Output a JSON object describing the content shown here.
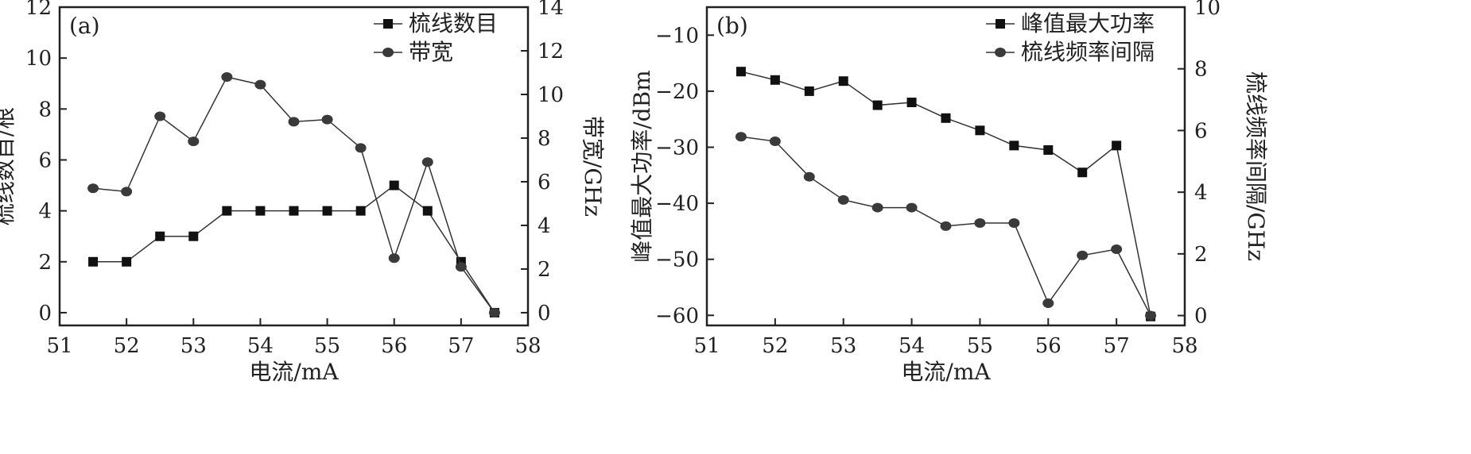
{
  "chart_data": [
    {
      "type": "line",
      "panel_label": "(a)",
      "xlabel": "电流/mA",
      "ylabel_left": "梳线数目/根",
      "ylabel_right": "带宽/GHz",
      "xlim": [
        51,
        58
      ],
      "ylim_left": [
        -0.5,
        12
      ],
      "ylim_right": [
        -0.5833,
        14
      ],
      "x_ticks": [
        51,
        52,
        53,
        54,
        55,
        56,
        57,
        58
      ],
      "y_ticks_left": [
        0,
        2,
        4,
        6,
        8,
        10,
        12
      ],
      "y_ticks_right": [
        0,
        2,
        4,
        6,
        8,
        10,
        12,
        14
      ],
      "legend_position": "top-right",
      "series": [
        {
          "name": "梳线数目",
          "axis": "left",
          "marker": "square",
          "x": [
            51.5,
            52,
            52.5,
            53,
            53.5,
            54,
            54.5,
            55,
            55.5,
            56,
            56.5,
            57,
            57.5
          ],
          "values": [
            2,
            2,
            3,
            3,
            4,
            4,
            4,
            4,
            4,
            5,
            4,
            2,
            0
          ]
        },
        {
          "name": "带宽",
          "axis": "right",
          "marker": "circle",
          "x": [
            51.5,
            52,
            52.5,
            53,
            53.5,
            54,
            54.5,
            55,
            55.5,
            56,
            56.5,
            57,
            57.5
          ],
          "values": [
            5.7,
            5.55,
            9.0,
            7.85,
            10.8,
            10.45,
            8.75,
            8.85,
            7.55,
            2.5,
            6.9,
            2.1,
            0
          ]
        }
      ]
    },
    {
      "type": "line",
      "panel_label": "(b)",
      "xlabel": "电流/mA",
      "ylabel_left": "峰值最大功率/dBm",
      "ylabel_right": "梳线频率间隔/GHz",
      "xlim": [
        51,
        58
      ],
      "ylim_left": [
        -61.8,
        -5
      ],
      "ylim_right": [
        -0.32,
        10
      ],
      "x_ticks": [
        51,
        52,
        53,
        54,
        55,
        56,
        57,
        58
      ],
      "y_ticks_left": [
        -60,
        -50,
        -40,
        -30,
        -20,
        -10
      ],
      "y_ticks_right": [
        0,
        2,
        4,
        6,
        8,
        10
      ],
      "legend_position": "top-right",
      "series": [
        {
          "name": "峰值最大功率",
          "axis": "left",
          "marker": "square",
          "x": [
            51.5,
            52,
            52.5,
            53,
            53.5,
            54,
            54.5,
            55,
            55.5,
            56,
            56.5,
            57,
            57.5
          ],
          "values": [
            -16.5,
            -18,
            -20,
            -18.2,
            -22.5,
            -22,
            -24.8,
            -27,
            -29.7,
            -30.5,
            -34.5,
            -29.7,
            -60.2
          ]
        },
        {
          "name": "梳线频率间隔",
          "axis": "right",
          "marker": "circle",
          "x": [
            51.5,
            52,
            52.5,
            53,
            53.5,
            54,
            54.5,
            55,
            55.5,
            56,
            56.5,
            57,
            57.5
          ],
          "values": [
            5.8,
            5.65,
            4.5,
            3.75,
            3.5,
            3.5,
            2.9,
            3.0,
            3.0,
            0.4,
            1.95,
            2.15,
            0
          ]
        }
      ]
    }
  ]
}
